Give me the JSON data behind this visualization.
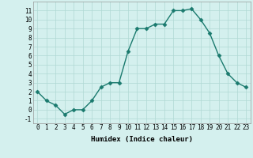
{
  "x": [
    0,
    1,
    2,
    3,
    4,
    5,
    6,
    7,
    8,
    9,
    10,
    11,
    12,
    13,
    14,
    15,
    16,
    17,
    18,
    19,
    20,
    21,
    22,
    23
  ],
  "y": [
    2.0,
    1.0,
    0.5,
    -0.5,
    0.0,
    0.0,
    1.0,
    2.5,
    3.0,
    3.0,
    6.5,
    9.0,
    9.0,
    9.5,
    9.5,
    11.0,
    11.0,
    11.2,
    10.0,
    8.5,
    6.0,
    4.0,
    3.0,
    2.5
  ],
  "line_color": "#1a7a6e",
  "marker_color": "#1a7a6e",
  "bg_color": "#d4f0ee",
  "grid_color": "#b0d8d4",
  "xlabel": "Humidex (Indice chaleur)",
  "ylim": [
    -1.5,
    12.0
  ],
  "xlim": [
    -0.5,
    23.5
  ],
  "yticks": [
    -1,
    0,
    1,
    2,
    3,
    4,
    5,
    6,
    7,
    8,
    9,
    10,
    11
  ],
  "xticks": [
    0,
    1,
    2,
    3,
    4,
    5,
    6,
    7,
    8,
    9,
    10,
    11,
    12,
    13,
    14,
    15,
    16,
    17,
    18,
    19,
    20,
    21,
    22,
    23
  ],
  "xtick_labels": [
    "0",
    "1",
    "2",
    "3",
    "4",
    "5",
    "6",
    "7",
    "8",
    "9",
    "10",
    "11",
    "12",
    "13",
    "14",
    "15",
    "16",
    "17",
    "18",
    "19",
    "20",
    "21",
    "22",
    "23"
  ],
  "line_width": 1.0,
  "marker_size": 2.5,
  "tick_fontsize": 5.5,
  "xlabel_fontsize": 6.5
}
